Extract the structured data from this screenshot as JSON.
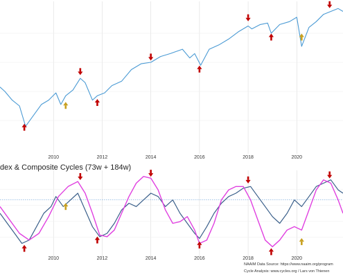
{
  "colors": {
    "index_line": "#4a9ad4",
    "naaim_line": "#3a5f8a",
    "cycle_line": "#e040e0",
    "arrow_red": "#c00000",
    "arrow_gold": "#c8a020",
    "grid": "#dcdcdc",
    "ref_line": "#6aa0d8"
  },
  "chart_data": [
    {
      "type": "line",
      "title": "",
      "xlabel": "",
      "ylabel": "",
      "xlim": [
        2007.8,
        2021.9
      ],
      "ylim": [
        0,
        100
      ],
      "x_ticks": [
        "2010",
        "2012",
        "2014",
        "2016",
        "2018",
        "2020"
      ],
      "grid": true,
      "series": [
        {
          "x": [
            2007.8,
            2008.0,
            2008.3,
            2008.6,
            2008.85,
            2009.2,
            2009.5,
            2009.8,
            2010.1,
            2010.3,
            2010.5,
            2010.8,
            2011.1,
            2011.3,
            2011.6,
            2011.8,
            2012.1,
            2012.4,
            2012.8,
            2013.2,
            2013.6,
            2014.0,
            2014.4,
            2014.8,
            2015.3,
            2015.6,
            2015.8,
            2016.05,
            2016.4,
            2016.8,
            2017.2,
            2017.6,
            2018.0,
            2018.15,
            2018.5,
            2018.8,
            2018.95,
            2019.3,
            2019.7,
            2020.0,
            2020.2,
            2020.5,
            2020.8,
            2021.1,
            2021.4,
            2021.7,
            2021.9
          ],
          "values": [
            43,
            40,
            34,
            30,
            16,
            24,
            31,
            34,
            39,
            31,
            37,
            41,
            49,
            46,
            34,
            37,
            39,
            44,
            47,
            55,
            59,
            60,
            64,
            66,
            69,
            63,
            66,
            58,
            69,
            72,
            76,
            81,
            85,
            83,
            86,
            87,
            80,
            86,
            88,
            91,
            71,
            84,
            88,
            93,
            95,
            97,
            95
          ]
        }
      ],
      "annotations": [
        {
          "type": "arrow-up",
          "color": "red",
          "x": 2008.8,
          "y": 13
        },
        {
          "type": "arrow-up",
          "color": "gold",
          "x": 2010.5,
          "y": 28
        },
        {
          "type": "arrow-down",
          "color": "red",
          "x": 2011.1,
          "y": 56
        },
        {
          "type": "arrow-up",
          "color": "red",
          "x": 2011.8,
          "y": 30
        },
        {
          "type": "arrow-down",
          "color": "red",
          "x": 2014.0,
          "y": 66
        },
        {
          "type": "arrow-up",
          "color": "red",
          "x": 2016.0,
          "y": 53
        },
        {
          "type": "arrow-down",
          "color": "red",
          "x": 2018.0,
          "y": 93
        },
        {
          "type": "arrow-up",
          "color": "red",
          "x": 2018.95,
          "y": 75
        },
        {
          "type": "arrow-up",
          "color": "gold",
          "x": 2020.2,
          "y": 75
        },
        {
          "type": "arrow-down",
          "color": "red",
          "x": 2021.35,
          "y": 102
        }
      ]
    },
    {
      "type": "line",
      "title": "dex & Composite Cycles (73w + 184w)",
      "xlabel": "",
      "ylabel": "",
      "xlim": [
        2007.8,
        2021.9
      ],
      "ylim": [
        -100,
        140
      ],
      "x_ticks": [
        "2010",
        "2012",
        "2014",
        "2016",
        "2018",
        "2020"
      ],
      "reference_line": 60,
      "grid": true,
      "series": [
        {
          "x": [
            2007.8,
            2008.1,
            2008.4,
            2008.7,
            2009.0,
            2009.3,
            2009.6,
            2009.9,
            2010.1,
            2010.4,
            2010.7,
            2011.0,
            2011.3,
            2011.6,
            2011.9,
            2012.2,
            2012.5,
            2012.8,
            2013.1,
            2013.4,
            2013.7,
            2014.0,
            2014.3,
            2014.6,
            2014.9,
            2015.2,
            2015.5,
            2015.8,
            2016.0,
            2016.3,
            2016.6,
            2016.9,
            2017.2,
            2017.5,
            2017.8,
            2018.1,
            2018.4,
            2018.7,
            2019.0,
            2019.3,
            2019.6,
            2019.9,
            2020.2,
            2020.5,
            2020.8,
            2021.1,
            2021.4,
            2021.7,
            2021.9
          ],
          "values": [
            20,
            -10,
            -40,
            -70,
            -60,
            -20,
            20,
            40,
            70,
            40,
            60,
            80,
            30,
            -20,
            -50,
            -40,
            -10,
            30,
            50,
            40,
            60,
            80,
            70,
            40,
            60,
            20,
            -10,
            -40,
            -55,
            -20,
            20,
            50,
            70,
            80,
            95,
            100,
            70,
            40,
            10,
            -10,
            20,
            60,
            40,
            70,
            100,
            110,
            120,
            90,
            80
          ]
        },
        {
          "x": [
            2007.8,
            2008.2,
            2008.6,
            2009.0,
            2009.4,
            2009.8,
            2010.2,
            2010.6,
            2011.0,
            2011.3,
            2011.6,
            2011.9,
            2012.2,
            2012.5,
            2012.8,
            2013.1,
            2013.4,
            2013.7,
            2014.0,
            2014.3,
            2014.6,
            2014.9,
            2015.2,
            2015.5,
            2015.8,
            2016.0,
            2016.3,
            2016.6,
            2016.9,
            2017.2,
            2017.5,
            2017.8,
            2018.1,
            2018.4,
            2018.7,
            2019.0,
            2019.3,
            2019.6,
            2019.9,
            2020.2,
            2020.5,
            2020.8,
            2021.1,
            2021.4,
            2021.7,
            2021.9
          ],
          "values": [
            40,
            0,
            -40,
            -60,
            -40,
            10,
            70,
            100,
            115,
            80,
            20,
            -45,
            -50,
            -30,
            20,
            70,
            110,
            130,
            125,
            90,
            30,
            -10,
            -5,
            10,
            -30,
            -70,
            -60,
            -10,
            60,
            90,
            100,
            100,
            60,
            0,
            -60,
            -80,
            -60,
            -30,
            -20,
            -30,
            30,
            90,
            120,
            110,
            60,
            20
          ]
        }
      ],
      "annotations": [
        {
          "type": "arrow-up",
          "color": "red",
          "x": 2008.8,
          "y": -95
        },
        {
          "type": "arrow-up",
          "color": "gold",
          "x": 2010.5,
          "y": 30
        },
        {
          "type": "arrow-down",
          "color": "red",
          "x": 2011.1,
          "y": 140
        },
        {
          "type": "arrow-up",
          "color": "red",
          "x": 2011.8,
          "y": -70
        },
        {
          "type": "arrow-down",
          "color": "red",
          "x": 2014.0,
          "y": 150
        },
        {
          "type": "arrow-up",
          "color": "red",
          "x": 2016.0,
          "y": -85
        },
        {
          "type": "arrow-down",
          "color": "red",
          "x": 2018.0,
          "y": 130
        },
        {
          "type": "arrow-up",
          "color": "red",
          "x": 2018.95,
          "y": -105
        },
        {
          "type": "arrow-up",
          "color": "gold",
          "x": 2020.2,
          "y": -75
        },
        {
          "type": "arrow-down",
          "color": "red",
          "x": 2021.35,
          "y": 145
        }
      ]
    }
  ],
  "credits": {
    "line1": "NAAIM Data Source: https://www.naaim.org/program",
    "line2": "Cycle Analysis: www.cycles.org / Lars von Thienen"
  }
}
